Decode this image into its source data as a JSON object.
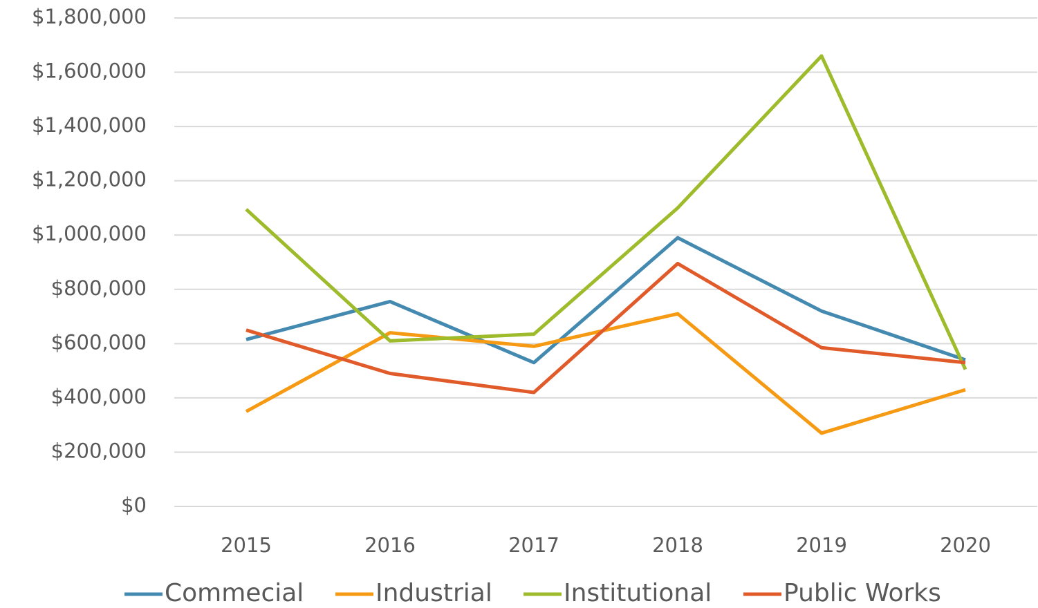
{
  "chart_data": {
    "type": "line",
    "categories": [
      "2015",
      "2016",
      "2017",
      "2018",
      "2019",
      "2020"
    ],
    "series": [
      {
        "name": "Commecial",
        "color": "#4389b0",
        "values": [
          615000,
          755000,
          530000,
          990000,
          720000,
          540000
        ]
      },
      {
        "name": "Industrial",
        "color": "#f59a12",
        "values": [
          350000,
          640000,
          590000,
          710000,
          270000,
          430000
        ]
      },
      {
        "name": "Institutional",
        "color": "#9dbb2b",
        "values": [
          1095000,
          610000,
          635000,
          1100000,
          1660000,
          505000
        ]
      },
      {
        "name": "Public Works",
        "color": "#e05a2a",
        "values": [
          650000,
          490000,
          420000,
          895000,
          585000,
          530000
        ]
      }
    ],
    "ylim": [
      0,
      1800000
    ],
    "yticks": [
      {
        "value": 0,
        "label": "$0"
      },
      {
        "value": 200000,
        "label": "$200,000"
      },
      {
        "value": 400000,
        "label": "$400,000"
      },
      {
        "value": 600000,
        "label": "$600,000"
      },
      {
        "value": 800000,
        "label": "$800,000"
      },
      {
        "value": 1000000,
        "label": "$1,000,000"
      },
      {
        "value": 1200000,
        "label": "$1,200,000"
      },
      {
        "value": 1400000,
        "label": "$1,400,000"
      },
      {
        "value": 1600000,
        "label": "$1,600,000"
      },
      {
        "value": 1800000,
        "label": "$1,800,000"
      }
    ],
    "grid": true,
    "legend": "bottom"
  }
}
